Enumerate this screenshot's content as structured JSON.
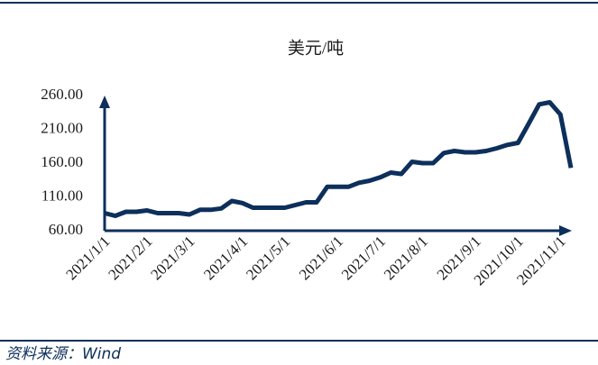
{
  "chart_data": {
    "type": "line",
    "title": "美元/吨",
    "source": "资料来源：Wind",
    "categories": [
      "2021/1/1",
      null,
      null,
      null,
      "2021/2/1",
      null,
      null,
      null,
      "2021/3/1",
      null,
      null,
      null,
      null,
      "2021/4/1",
      null,
      null,
      null,
      "2021/5/1",
      null,
      null,
      null,
      null,
      "2021/6/1",
      null,
      null,
      null,
      "2021/7/1",
      null,
      null,
      null,
      "2021/8/1",
      null,
      null,
      null,
      null,
      "2021/9/1",
      null,
      null,
      null,
      "2021/10/1",
      null,
      null,
      null,
      "2021/11/1",
      null
    ],
    "series": [
      {
        "name": "美元/吨",
        "color": "#0d2f5c",
        "values": [
          86,
          82,
          88,
          88,
          90,
          86,
          86,
          86,
          84,
          91,
          91,
          93,
          104,
          101,
          94,
          94,
          94,
          94,
          98,
          102,
          102,
          125,
          125,
          125,
          131,
          134,
          139,
          146,
          144,
          162,
          160,
          160,
          175,
          178,
          176,
          176,
          178,
          182,
          187,
          190,
          218,
          247,
          250,
          232,
          153
        ]
      }
    ],
    "ylim": [
      60,
      260
    ],
    "yticks": [
      {
        "value": 60,
        "label": "60.00"
      },
      {
        "value": 110,
        "label": "110.00"
      },
      {
        "value": 160,
        "label": "160.00"
      },
      {
        "value": 210,
        "label": "210.00"
      },
      {
        "value": 260,
        "label": "260.00"
      }
    ]
  }
}
